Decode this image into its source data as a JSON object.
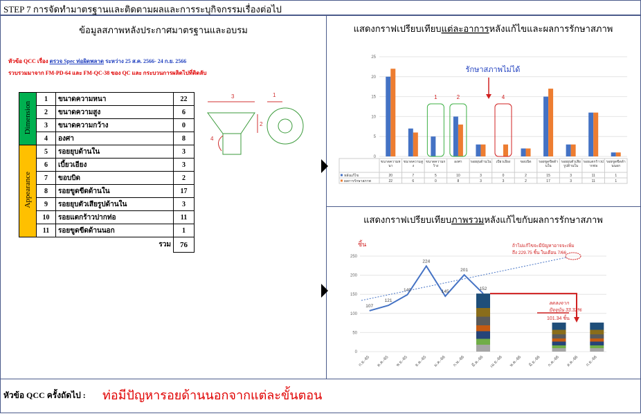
{
  "header": {
    "title": "STEP 7 การจัดทำมาตรฐานและติดตามผลและการระบุกิจกรรมเรื่องต่อไป"
  },
  "left_panel": {
    "title": "ข้อมูลสภาพหลังประกาศมาตรฐานและอบรม",
    "topic": {
      "prefix": "หัวข้อ QCC เรื่อง ",
      "highlight": "ตรวจ Spec ท่อผิดพลาด",
      "suffix": " ระหว่าง 25 ส.ค. 2566- 24 ก.ย. 2566"
    },
    "source": "รวบรวมมาจาก FM-PD-64 และ FM-QC-38 ของ QC และ กระบวนการผลิตไปที่ติดลับ"
  },
  "table": {
    "groups": [
      "Dimension",
      "Appearance"
    ],
    "rows": [
      [
        1,
        "ขนาดความหนา",
        22
      ],
      [
        2,
        "ขนาดความสูง",
        6
      ],
      [
        3,
        "ขนาดความกว้าง",
        0
      ],
      [
        4,
        "องศา",
        8
      ],
      [
        5,
        "รอยยุบด้านใน",
        3
      ],
      [
        6,
        "เบี้ยวเอียง",
        3
      ],
      [
        7,
        "ขอบบิด",
        2
      ],
      [
        8,
        "รอยขูดขีดด้านใน",
        17
      ],
      [
        9,
        "รอยยุบตัวเสียรูปด้านใน",
        3
      ],
      [
        10,
        "รอยแตกร้าวปากท่อ",
        11
      ],
      [
        11,
        "รอยขูดขีดด้านนอก",
        1
      ]
    ],
    "total_label": "รวม",
    "total": 76
  },
  "diagram": {
    "labels": [
      "3",
      "1",
      "2",
      "4"
    ]
  },
  "chart_data": [
    {
      "type": "bar",
      "title": [
        "แสดงกราฟเปรียบเทียบ",
        "แต่ละอาการ",
        "หลังแก้ไขและผลการรักษาสภาพ"
      ],
      "categories": [
        "ขนาดความหนา",
        "ขนาดความสูง",
        "ขนาดความกว้าง",
        "องศา",
        "รอยยุบด้านใน",
        "เบี้ยวเอียง",
        "ขอบบิด",
        "รอยขูดขีดด้านใน",
        "รอยยุบตัวเสียรูปด้านใน",
        "รอยแตกร้าวปากท่อ",
        "รอยขูดขีดด้านนอก"
      ],
      "series": [
        {
          "name": "หลังแก้ไข",
          "color": "#4472c4",
          "values": [
            20,
            7,
            5,
            10,
            3,
            0,
            2,
            15,
            3,
            11,
            1
          ]
        },
        {
          "name": "ผลการรักษาสภาพ",
          "color": "#ed7d31",
          "values": [
            22,
            6,
            0,
            8,
            3,
            3,
            2,
            17,
            3,
            11,
            1
          ]
        }
      ],
      "ylim": [
        0,
        25
      ],
      "yticks": [
        0,
        5,
        10,
        15,
        20,
        25
      ],
      "grid": true,
      "annotations": {
        "note": "รักษาสภาพไม่ได้",
        "markers": [
          "1",
          "2",
          "4"
        ]
      }
    },
    {
      "type": "line",
      "title": [
        "แสดงกราฟเปรียบเทียบ",
        "ภาพรวม",
        "หลังแก้ไขกับผลการรักษาสภาพ"
      ],
      "y_label": "ชิ้น",
      "categories": [
        "ก.ย.-65",
        "ต.ค.-65",
        "พ.ย.-65",
        "ธ.ค.-65",
        "ม.ค.-66",
        "ก.พ.-66",
        "มี.ค.-66",
        "เม.ย.-66",
        "พ.ค.-66",
        "มิ.ย.-66",
        "ก.ค.-66",
        "ส.ค.-66",
        "ก.ย.-66"
      ],
      "series": [
        {
          "type": "line",
          "color": "#4472c4",
          "values": [
            107,
            121,
            149,
            224,
            145,
            201,
            152,
            null,
            null,
            null,
            null,
            null,
            null
          ]
        },
        {
          "type": "bar",
          "color": "#1f4e79",
          "values": [
            null,
            null,
            null,
            null,
            null,
            null,
            152,
            null,
            null,
            null,
            76,
            null,
            76
          ]
        }
      ],
      "ylim": [
        0,
        250
      ],
      "yticks": [
        0,
        50,
        100,
        150,
        200,
        250
      ],
      "grid": true,
      "annotations": {
        "forecast": [
          "ถ้าไม่แก้ไขจะมีปัญหาอาจจะเพิ่ม",
          "ถึง 229.75 ชิ้น ในเดือน 7/66"
        ],
        "reduction": [
          "ลดลงจาก",
          "ปัจจุบัน 33.32%"
        ],
        "target": "101.34 ชิ้น"
      }
    }
  ],
  "footer": {
    "label": "หัวข้อ QCC ครั้งถัดไป :",
    "topic": "ท่อมีปัญหารอยด้านนอกจากแต่ละขั้นตอน"
  }
}
